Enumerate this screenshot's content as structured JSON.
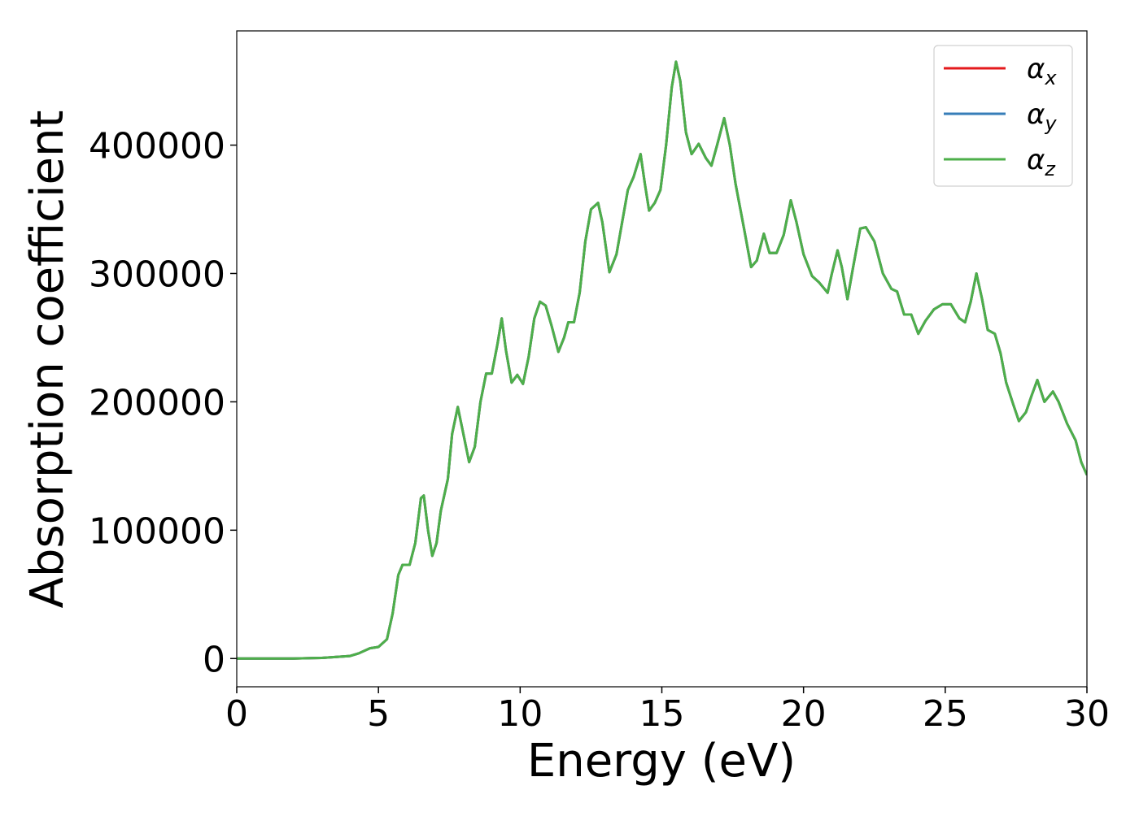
{
  "chart_data": {
    "type": "line",
    "xlabel": "Energy (eV)",
    "ylabel": "Absorption coefficient",
    "x": [
      0,
      2,
      3,
      4,
      4.3,
      4.7,
      5,
      5.3,
      5.5,
      5.7,
      5.85,
      6.1,
      6.3,
      6.5,
      6.6,
      6.75,
      6.9,
      7.05,
      7.2,
      7.45,
      7.6,
      7.8,
      7.95,
      8.2,
      8.4,
      8.6,
      8.8,
      9.0,
      9.2,
      9.35,
      9.5,
      9.7,
      9.9,
      10.1,
      10.3,
      10.5,
      10.7,
      10.9,
      11.1,
      11.35,
      11.55,
      11.7,
      11.9,
      12.1,
      12.3,
      12.5,
      12.75,
      12.9,
      13.15,
      13.4,
      13.6,
      13.8,
      14.0,
      14.25,
      14.4,
      14.55,
      14.75,
      14.95,
      15.15,
      15.35,
      15.5,
      15.65,
      15.85,
      16.05,
      16.3,
      16.55,
      16.75,
      16.95,
      17.2,
      17.4,
      17.6,
      17.9,
      18.15,
      18.35,
      18.6,
      18.8,
      19.05,
      19.3,
      19.55,
      19.75,
      20.0,
      20.3,
      20.55,
      20.85,
      21.0,
      21.2,
      21.35,
      21.55,
      21.75,
      22.0,
      22.2,
      22.5,
      22.8,
      23.1,
      23.3,
      23.55,
      23.8,
      24.05,
      24.3,
      24.6,
      24.9,
      25.2,
      25.5,
      25.7,
      25.9,
      26.1,
      26.3,
      26.5,
      26.75,
      26.95,
      27.15,
      27.4,
      27.6,
      27.85,
      28.05,
      28.25,
      28.5,
      28.8,
      29.0,
      29.3,
      29.6,
      29.8,
      30.0
    ],
    "series": [
      {
        "name": "αx",
        "color": "#e41a1c",
        "values": [
          0,
          0,
          500,
          2000,
          4000,
          8000,
          9000,
          15000,
          35000,
          65000,
          73000,
          73000,
          90000,
          125000,
          127000,
          100000,
          80000,
          90000,
          115000,
          140000,
          175000,
          196000,
          180000,
          153000,
          165000,
          200000,
          222000,
          222000,
          245000,
          265000,
          240000,
          215000,
          221000,
          214000,
          235000,
          265000,
          278000,
          275000,
          260000,
          239000,
          250000,
          262000,
          262000,
          285000,
          325000,
          350000,
          355000,
          340000,
          301000,
          315000,
          340000,
          365000,
          375000,
          393000,
          370000,
          349000,
          355000,
          365000,
          400000,
          445000,
          465000,
          450000,
          410000,
          393000,
          401000,
          390000,
          384000,
          400000,
          421000,
          400000,
          370000,
          335000,
          305000,
          310000,
          331000,
          316000,
          316000,
          330000,
          357000,
          340000,
          315000,
          298000,
          293000,
          285000,
          300000,
          318000,
          305000,
          280000,
          305000,
          335000,
          336000,
          325000,
          300000,
          288000,
          286000,
          268000,
          268000,
          253000,
          263000,
          272000,
          276000,
          276000,
          265000,
          262000,
          278000,
          300000,
          280000,
          256000,
          253000,
          238000,
          215000,
          198000,
          185000,
          192000,
          205000,
          217000,
          200000,
          208000,
          200000,
          183000,
          170000,
          153000,
          143000
        ]
      },
      {
        "name": "αy",
        "color": "#377eb8",
        "values": [
          0,
          0,
          500,
          2000,
          4000,
          8000,
          9000,
          15000,
          35000,
          65000,
          73000,
          73000,
          90000,
          125000,
          127000,
          100000,
          80000,
          90000,
          115000,
          140000,
          175000,
          196000,
          180000,
          153000,
          165000,
          200000,
          222000,
          222000,
          245000,
          265000,
          240000,
          215000,
          221000,
          214000,
          235000,
          265000,
          278000,
          275000,
          260000,
          239000,
          250000,
          262000,
          262000,
          285000,
          325000,
          350000,
          355000,
          340000,
          301000,
          315000,
          340000,
          365000,
          375000,
          393000,
          370000,
          349000,
          355000,
          365000,
          400000,
          445000,
          465000,
          450000,
          410000,
          393000,
          401000,
          390000,
          384000,
          400000,
          421000,
          400000,
          370000,
          335000,
          305000,
          310000,
          331000,
          316000,
          316000,
          330000,
          357000,
          340000,
          315000,
          298000,
          293000,
          285000,
          300000,
          318000,
          305000,
          280000,
          305000,
          335000,
          336000,
          325000,
          300000,
          288000,
          286000,
          268000,
          268000,
          253000,
          263000,
          272000,
          276000,
          276000,
          265000,
          262000,
          278000,
          300000,
          280000,
          256000,
          253000,
          238000,
          215000,
          198000,
          185000,
          192000,
          205000,
          217000,
          200000,
          208000,
          200000,
          183000,
          170000,
          153000,
          143000
        ]
      },
      {
        "name": "αz",
        "color": "#4daf4a",
        "values": [
          0,
          0,
          500,
          2000,
          4000,
          8000,
          9000,
          15000,
          35000,
          65000,
          73000,
          73000,
          90000,
          125000,
          127000,
          100000,
          80000,
          90000,
          115000,
          140000,
          175000,
          196000,
          180000,
          153000,
          165000,
          200000,
          222000,
          222000,
          245000,
          265000,
          240000,
          215000,
          221000,
          214000,
          235000,
          265000,
          278000,
          275000,
          260000,
          239000,
          250000,
          262000,
          262000,
          285000,
          325000,
          350000,
          355000,
          340000,
          301000,
          315000,
          340000,
          365000,
          375000,
          393000,
          370000,
          349000,
          355000,
          365000,
          400000,
          445000,
          465000,
          450000,
          410000,
          393000,
          401000,
          390000,
          384000,
          400000,
          421000,
          400000,
          370000,
          335000,
          305000,
          310000,
          331000,
          316000,
          316000,
          330000,
          357000,
          340000,
          315000,
          298000,
          293000,
          285000,
          300000,
          318000,
          305000,
          280000,
          305000,
          335000,
          336000,
          325000,
          300000,
          288000,
          286000,
          268000,
          268000,
          253000,
          263000,
          272000,
          276000,
          276000,
          265000,
          262000,
          278000,
          300000,
          280000,
          256000,
          253000,
          238000,
          215000,
          198000,
          185000,
          192000,
          205000,
          217000,
          200000,
          208000,
          200000,
          183000,
          170000,
          153000,
          143000
        ]
      }
    ],
    "xlim": [
      0,
      30
    ],
    "xticks": [
      0,
      5,
      10,
      15,
      20,
      25,
      30
    ],
    "ylim": [
      -22000,
      489000
    ],
    "yticks": [
      0,
      100000,
      200000,
      300000,
      400000
    ],
    "grid": false,
    "legend": "upper right"
  }
}
